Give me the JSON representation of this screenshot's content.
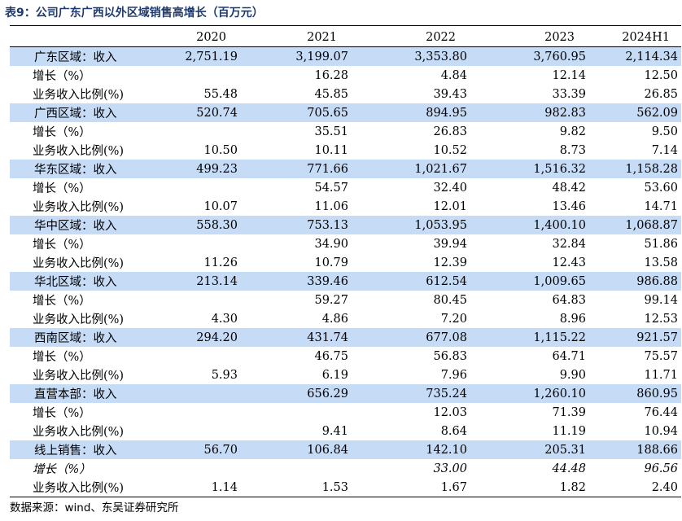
{
  "caption": "表9：公司广东广西以外区域销售高增长（百万元）",
  "columns": [
    "",
    "2020",
    "2021",
    "2022",
    "2023",
    "2024H1"
  ],
  "rows": [
    {
      "type": "region",
      "cells": [
        "广东区域：收入",
        "2,751.19",
        "3,199.07",
        "3,353.80",
        "3,760.95",
        "2,114.34"
      ]
    },
    {
      "type": "growth",
      "cells": [
        "增长（%）",
        "",
        "16.28",
        "4.84",
        "12.14",
        "12.50"
      ]
    },
    {
      "type": "ratio",
      "cells": [
        "业务收入比例(%)",
        "55.48",
        "45.85",
        "39.43",
        "33.39",
        "26.85"
      ]
    },
    {
      "type": "region",
      "cells": [
        "广西区域：收入",
        "520.74",
        "705.65",
        "894.95",
        "982.83",
        "562.09"
      ]
    },
    {
      "type": "growth",
      "cells": [
        "增长（%）",
        "",
        "35.51",
        "26.83",
        "9.82",
        "9.50"
      ]
    },
    {
      "type": "ratio",
      "cells": [
        "业务收入比例(%)",
        "10.50",
        "10.11",
        "10.52",
        "8.73",
        "7.14"
      ]
    },
    {
      "type": "region",
      "cells": [
        "华东区域：收入",
        "499.23",
        "771.66",
        "1,021.67",
        "1,516.32",
        "1,158.28"
      ]
    },
    {
      "type": "growth",
      "cells": [
        "增长（%）",
        "",
        "54.57",
        "32.40",
        "48.42",
        "53.60"
      ]
    },
    {
      "type": "ratio",
      "cells": [
        "业务收入比例(%)",
        "10.07",
        "11.06",
        "12.01",
        "13.46",
        "14.71"
      ]
    },
    {
      "type": "region",
      "cells": [
        "华中区域：收入",
        "558.30",
        "753.13",
        "1,053.95",
        "1,400.10",
        "1,068.87"
      ]
    },
    {
      "type": "growth",
      "cells": [
        "增长（%）",
        "",
        "34.90",
        "39.94",
        "32.84",
        "51.86"
      ]
    },
    {
      "type": "ratio",
      "cells": [
        "业务收入比例(%)",
        "11.26",
        "10.79",
        "12.39",
        "12.43",
        "13.58"
      ]
    },
    {
      "type": "region",
      "cells": [
        "华北区域：收入",
        "213.14",
        "339.46",
        "612.54",
        "1,009.65",
        "986.88"
      ]
    },
    {
      "type": "growth",
      "cells": [
        "增长（%）",
        "",
        "59.27",
        "80.45",
        "64.83",
        "99.14"
      ]
    },
    {
      "type": "ratio",
      "cells": [
        "业务收入比例(%)",
        "4.30",
        "4.86",
        "7.20",
        "8.96",
        "12.53"
      ]
    },
    {
      "type": "region",
      "cells": [
        "西南区域：收入",
        "294.20",
        "431.74",
        "677.08",
        "1,115.22",
        "921.57"
      ]
    },
    {
      "type": "growth",
      "cells": [
        "增长（%）",
        "",
        "46.75",
        "56.83",
        "64.71",
        "75.57"
      ]
    },
    {
      "type": "ratio",
      "cells": [
        "业务收入比例(%)",
        "5.93",
        "6.19",
        "7.96",
        "9.90",
        "11.71"
      ]
    },
    {
      "type": "region",
      "cells": [
        "直营本部：收入",
        "",
        "656.29",
        "735.24",
        "1,260.10",
        "860.95"
      ]
    },
    {
      "type": "growth",
      "cells": [
        "增长（%）",
        "",
        "",
        "12.03",
        "71.39",
        "76.44"
      ]
    },
    {
      "type": "ratio",
      "cells": [
        "业务收入比例(%)",
        "",
        "9.41",
        "8.64",
        "11.19",
        "10.94"
      ]
    },
    {
      "type": "region",
      "cells": [
        "线上销售：收入",
        "56.70",
        "106.84",
        "142.10",
        "205.31",
        "188.66"
      ]
    },
    {
      "type": "growth italic",
      "cells": [
        "增长（%）",
        "",
        "",
        "33.00",
        "44.48",
        "96.56"
      ]
    },
    {
      "type": "ratio last",
      "cells": [
        "业务收入比例(%)",
        "1.14",
        "1.53",
        "1.67",
        "1.82",
        "2.40"
      ]
    }
  ],
  "source": "数据来源：wind、东吴证券研究所",
  "colors": {
    "caption": "#1f3a6e",
    "region_row_bg": "#c6dbf6"
  }
}
